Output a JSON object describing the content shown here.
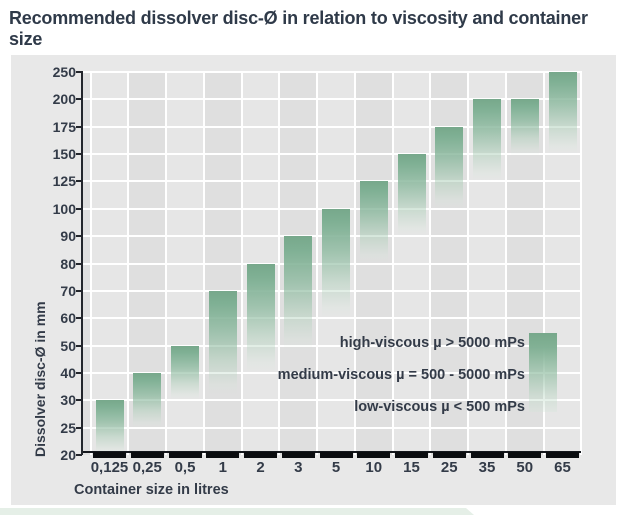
{
  "title": "Recommended dissolver disc-Ø in relation to viscosity and container size",
  "colors": {
    "title_text": "#2f3a49",
    "label_text": "#333b48",
    "bar_green_top": "#77a88b",
    "panel_background": "#e8e8e8",
    "stripe_dark": "#dfdfdf",
    "stripe_light": "#e6e6e6",
    "gridline": "#ffffff",
    "axis": "#23262c",
    "footer_band": "#e5efe7"
  },
  "chart_data": {
    "type": "bar",
    "title": "Recommended dissolver disc-Ø in relation to viscosity and container size",
    "xlabel": "Container size in litres",
    "ylabel": "Dissolver disc-Ø in mm",
    "y_scale": "non-linear: listed ticks are evenly spaced",
    "y_ticks": [
      20,
      25,
      30,
      40,
      50,
      60,
      70,
      80,
      90,
      100,
      125,
      150,
      175,
      200,
      250
    ],
    "ylim": [
      20,
      250
    ],
    "grid": true,
    "categories": [
      "0,125",
      "0,25",
      "0,5",
      "1",
      "2",
      "3",
      "5",
      "10",
      "15",
      "25",
      "35",
      "50",
      "65"
    ],
    "bars": [
      {
        "container_litres": "0,125",
        "disc_max_mm": 30,
        "disc_fade_to_mm": 20
      },
      {
        "container_litres": "0,25",
        "disc_max_mm": 40,
        "disc_fade_to_mm": 25
      },
      {
        "container_litres": "0,5",
        "disc_max_mm": 50,
        "disc_fade_to_mm": 30
      },
      {
        "container_litres": "1",
        "disc_max_mm": 70,
        "disc_fade_to_mm": 32
      },
      {
        "container_litres": "2",
        "disc_max_mm": 80,
        "disc_fade_to_mm": 40
      },
      {
        "container_litres": "3",
        "disc_max_mm": 90,
        "disc_fade_to_mm": 48
      },
      {
        "container_litres": "5",
        "disc_max_mm": 100,
        "disc_fade_to_mm": 60
      },
      {
        "container_litres": "10",
        "disc_max_mm": 125,
        "disc_fade_to_mm": 80
      },
      {
        "container_litres": "15",
        "disc_max_mm": 150,
        "disc_fade_to_mm": 90
      },
      {
        "container_litres": "25",
        "disc_max_mm": 175,
        "disc_fade_to_mm": 100
      },
      {
        "container_litres": "35",
        "disc_max_mm": 200,
        "disc_fade_to_mm": 125
      },
      {
        "container_litres": "50",
        "disc_max_mm": 200,
        "disc_fade_to_mm": 148
      },
      {
        "container_litres": "65",
        "disc_max_mm": 250,
        "disc_fade_to_mm": 150
      }
    ],
    "legend": [
      {
        "label": "high-viscous µ > 5000 mPs"
      },
      {
        "label": "medium-viscous µ = 500 - 5000 mPs"
      },
      {
        "label": "low-viscous µ < 500 mPs"
      }
    ],
    "legend_position": "inside lower right",
    "legend_swatch": "vertical gradient bar: dark green at top (high-viscous) fading to pale at bottom (low-viscous)"
  }
}
